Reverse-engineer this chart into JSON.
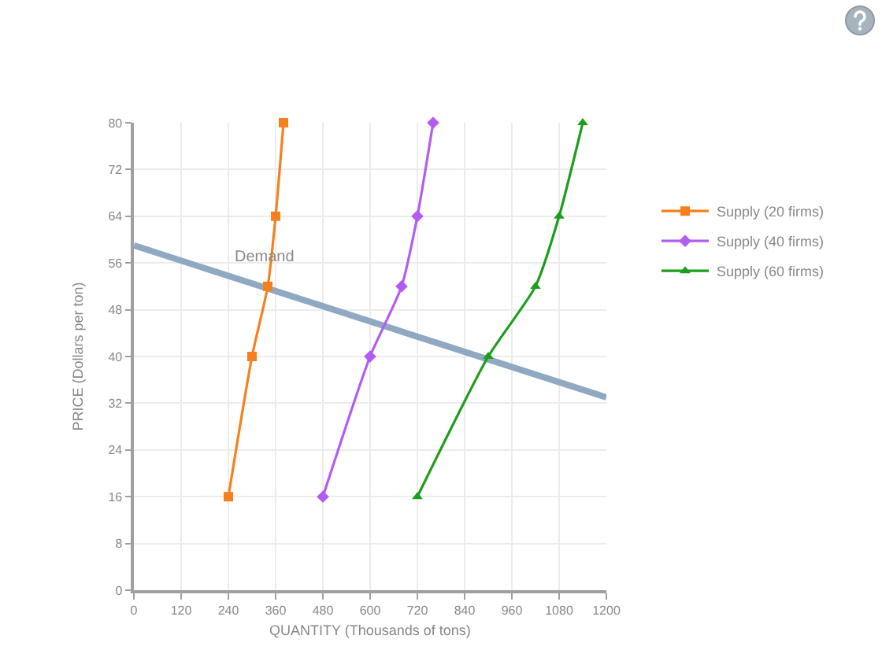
{
  "chart_data": {
    "type": "line",
    "xlabel": "QUANTITY (Thousands of tons)",
    "ylabel": "PRICE (Dollars per ton)",
    "xlim": [
      0,
      1200
    ],
    "xticks": [
      0,
      120,
      240,
      360,
      480,
      600,
      720,
      840,
      960,
      1080,
      1200
    ],
    "ylim": [
      0,
      80
    ],
    "yticks": [
      0,
      8,
      16,
      24,
      32,
      40,
      48,
      56,
      64,
      72,
      80
    ],
    "grid": true,
    "legend": "right",
    "series": [
      {
        "x": [
          0,
          1200
        ],
        "values": [
          59,
          33
        ],
        "color": "#8fa9c2",
        "marker": "none"
      },
      {
        "name": "Supply (20 firms)",
        "x": [
          240,
          300,
          340,
          360,
          380
        ],
        "values": [
          16,
          40,
          52,
          64,
          80
        ],
        "color": "#f7801e",
        "marker": "square"
      },
      {
        "name": "Supply (40 firms)",
        "x": [
          480,
          600,
          680,
          720,
          760
        ],
        "values": [
          16,
          40,
          52,
          64,
          80
        ],
        "color": "#b35cf2",
        "marker": "diamond"
      },
      {
        "name": "Supply (60 firms)",
        "x": [
          720,
          900,
          1020,
          1080,
          1140
        ],
        "values": [
          16,
          40,
          52,
          64,
          80
        ],
        "color": "#1c9e1c",
        "marker": "triangle"
      }
    ],
    "annotations": [
      {
        "text": "Demand",
        "x": 330,
        "y": 57
      }
    ]
  }
}
